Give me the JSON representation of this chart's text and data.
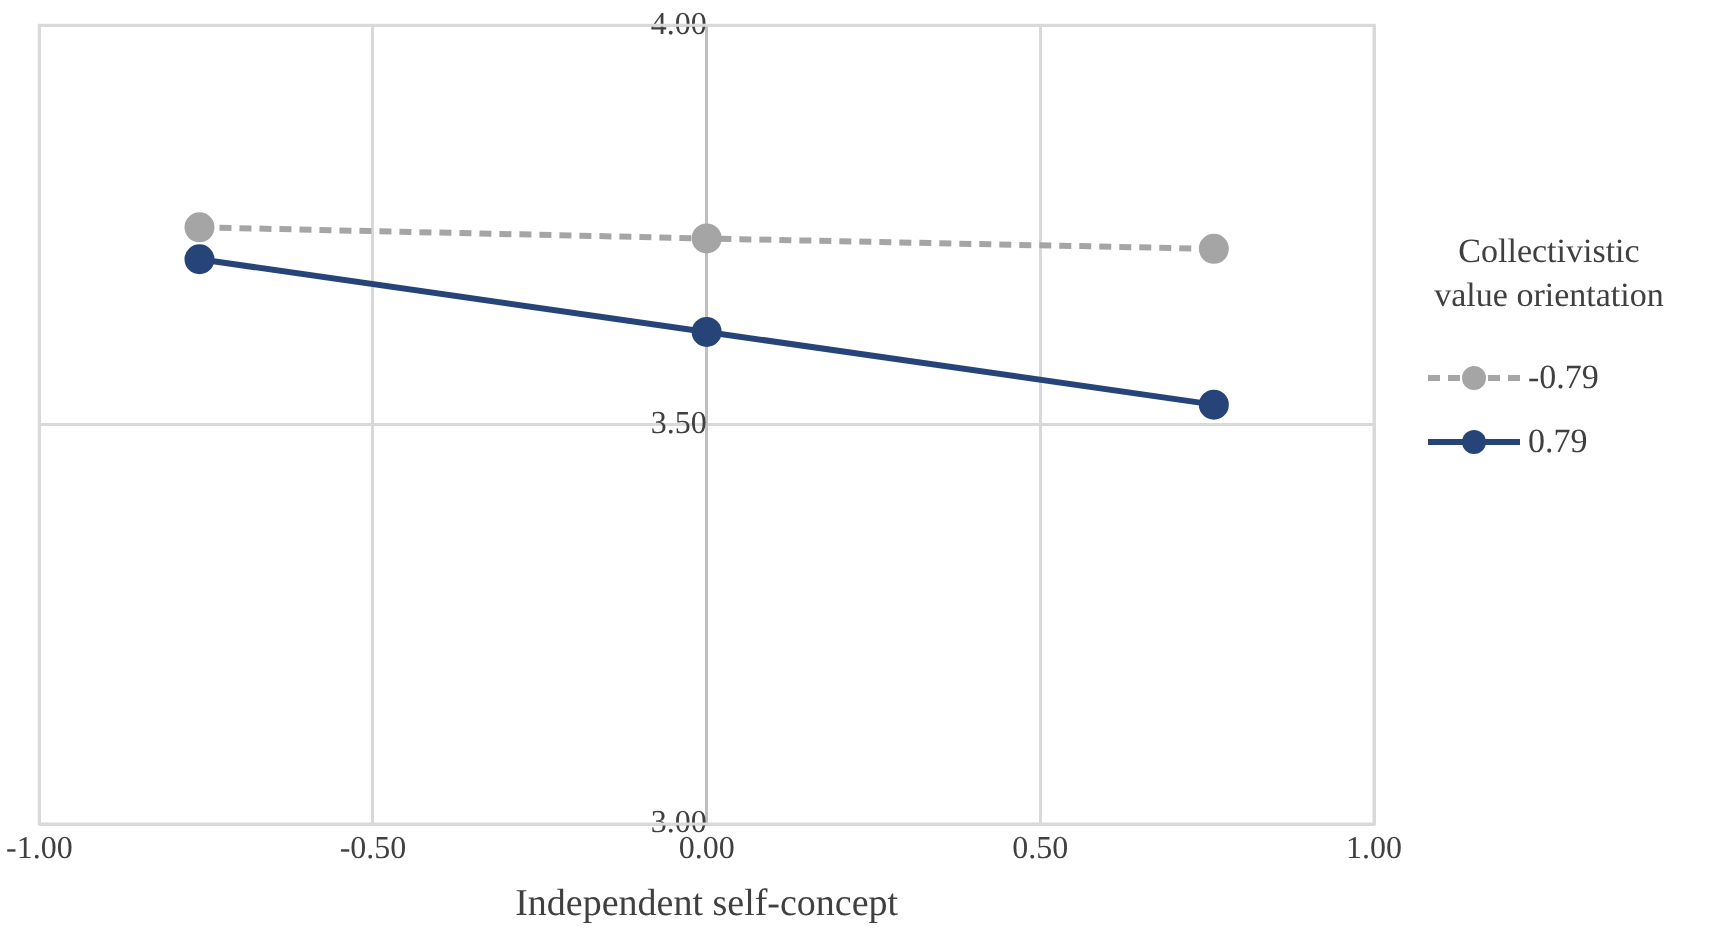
{
  "chart_data": {
    "type": "line",
    "xlabel": "Independent self-concept",
    "legend_title": "Collectivistic value orientation",
    "x": [
      -0.76,
      0,
      0.76
    ],
    "series": [
      {
        "name": "-0.79",
        "color": "#a5a5a5",
        "values": [
          3.747,
          3.733,
          3.72
        ],
        "line_style": "dashed"
      },
      {
        "name": "0.79",
        "color": "#264478",
        "values": [
          3.707,
          3.616,
          3.525
        ],
        "line_style": "solid"
      }
    ],
    "xlim": [
      -1,
      1
    ],
    "xticks": [
      {
        "value": -1,
        "label": "-1.00"
      },
      {
        "value": -0.5,
        "label": "-0.50"
      },
      {
        "value": 0,
        "label": "0.00"
      },
      {
        "value": 0.5,
        "label": "0.50"
      },
      {
        "value": 1,
        "label": "1.00"
      }
    ],
    "ylim": [
      3,
      4
    ],
    "yticks": [
      {
        "value": 3,
        "label": "3.00"
      },
      {
        "value": 3.5,
        "label": "3.50"
      },
      {
        "value": 4,
        "label": "4.00"
      }
    ],
    "grid": true,
    "legend": "right",
    "marker": "circle"
  }
}
